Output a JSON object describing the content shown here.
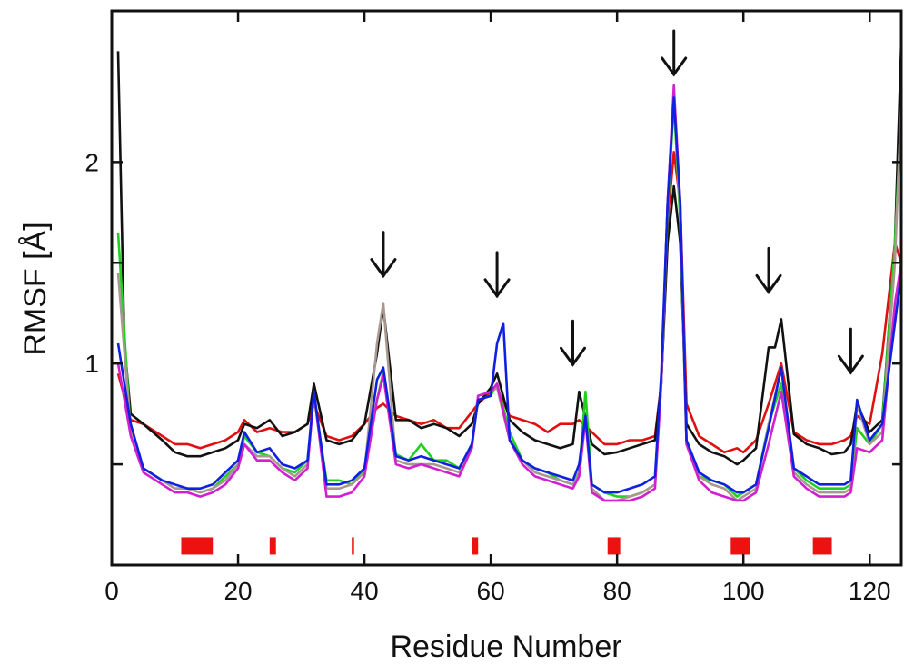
{
  "chart_data": {
    "type": "line",
    "title": "",
    "xlabel": "Residue Number",
    "ylabel": "RMSF [Å]",
    "xlim": [
      0,
      125
    ],
    "ylim": [
      0.0,
      2.75
    ],
    "x_ticks": [
      0,
      20,
      40,
      60,
      80,
      100,
      120
    ],
    "y_ticks_labeled": [
      1,
      2
    ],
    "y_ticks_minor": [
      0.5,
      1.5
    ],
    "grid": false,
    "legend": "none",
    "series": [
      {
        "color": "#e01010",
        "x": [
          1,
          3,
          5,
          8,
          10,
          12,
          14,
          16,
          18,
          20,
          21,
          23,
          25,
          27,
          29,
          31,
          32,
          34,
          36,
          38,
          40,
          42,
          43,
          45,
          47,
          49,
          51,
          53,
          55,
          57,
          58,
          60,
          61,
          63,
          65,
          67,
          69,
          71,
          73,
          74,
          76,
          78,
          80,
          82,
          84,
          86,
          87,
          88,
          89,
          90,
          91,
          93,
          95,
          97,
          99,
          100,
          102,
          104,
          106,
          108,
          110,
          112,
          114,
          116,
          117,
          118,
          120,
          122,
          124,
          125
        ],
        "y": [
          0.95,
          0.72,
          0.7,
          0.64,
          0.6,
          0.6,
          0.58,
          0.6,
          0.62,
          0.66,
          0.72,
          0.66,
          0.68,
          0.66,
          0.66,
          0.7,
          0.8,
          0.64,
          0.62,
          0.64,
          0.7,
          0.78,
          0.8,
          0.74,
          0.72,
          0.7,
          0.72,
          0.68,
          0.68,
          0.76,
          0.8,
          0.86,
          0.88,
          0.74,
          0.72,
          0.7,
          0.66,
          0.7,
          0.7,
          0.72,
          0.66,
          0.6,
          0.6,
          0.62,
          0.62,
          0.64,
          0.9,
          1.7,
          2.05,
          1.8,
          0.8,
          0.64,
          0.6,
          0.56,
          0.58,
          0.56,
          0.62,
          0.8,
          1.0,
          0.66,
          0.62,
          0.6,
          0.6,
          0.62,
          0.64,
          0.74,
          0.7,
          1.05,
          1.6,
          1.5
        ]
      },
      {
        "color": "#111111",
        "x": [
          1,
          2,
          3,
          5,
          8,
          10,
          12,
          14,
          16,
          18,
          20,
          21,
          23,
          25,
          27,
          29,
          31,
          32,
          34,
          36,
          38,
          40,
          42,
          43,
          45,
          47,
          49,
          51,
          53,
          55,
          57,
          58,
          60,
          61,
          63,
          65,
          67,
          69,
          71,
          73,
          74,
          76,
          78,
          80,
          82,
          84,
          86,
          87,
          88,
          89,
          90,
          91,
          93,
          95,
          97,
          99,
          100,
          102,
          104,
          105,
          106,
          108,
          110,
          112,
          114,
          116,
          117,
          118,
          120,
          122,
          124,
          125
        ],
        "y": [
          2.55,
          1.1,
          0.75,
          0.7,
          0.62,
          0.56,
          0.54,
          0.54,
          0.56,
          0.58,
          0.62,
          0.7,
          0.68,
          0.72,
          0.64,
          0.66,
          0.7,
          0.9,
          0.62,
          0.6,
          0.62,
          0.7,
          1.05,
          1.28,
          0.72,
          0.72,
          0.68,
          0.7,
          0.68,
          0.64,
          0.7,
          0.8,
          0.88,
          0.95,
          0.72,
          0.66,
          0.62,
          0.6,
          0.58,
          0.6,
          0.86,
          0.6,
          0.55,
          0.56,
          0.58,
          0.6,
          0.62,
          0.9,
          1.6,
          1.88,
          1.6,
          0.7,
          0.6,
          0.56,
          0.54,
          0.5,
          0.52,
          0.58,
          1.08,
          1.08,
          1.22,
          0.65,
          0.6,
          0.58,
          0.55,
          0.56,
          0.6,
          0.8,
          0.66,
          0.72,
          1.6,
          2.6
        ]
      },
      {
        "color": "#20d020",
        "x": [
          1,
          3,
          5,
          8,
          10,
          12,
          14,
          16,
          18,
          20,
          21,
          23,
          25,
          27,
          29,
          31,
          32,
          34,
          36,
          38,
          40,
          42,
          43,
          45,
          47,
          49,
          51,
          53,
          55,
          57,
          58,
          60,
          61,
          63,
          65,
          67,
          69,
          71,
          73,
          74,
          75,
          76,
          78,
          80,
          82,
          84,
          86,
          87,
          88,
          89,
          90,
          91,
          93,
          95,
          97,
          99,
          100,
          102,
          104,
          106,
          108,
          110,
          112,
          114,
          116,
          117,
          118,
          120,
          122,
          124,
          125
        ],
        "y": [
          1.65,
          0.65,
          0.48,
          0.42,
          0.38,
          0.38,
          0.36,
          0.38,
          0.44,
          0.5,
          0.64,
          0.56,
          0.54,
          0.48,
          0.46,
          0.52,
          0.84,
          0.42,
          0.42,
          0.4,
          0.48,
          0.82,
          0.96,
          0.55,
          0.52,
          0.6,
          0.52,
          0.52,
          0.48,
          0.6,
          0.82,
          0.84,
          0.9,
          0.66,
          0.52,
          0.48,
          0.46,
          0.42,
          0.4,
          0.46,
          0.86,
          0.4,
          0.36,
          0.34,
          0.34,
          0.36,
          0.4,
          0.9,
          1.75,
          2.3,
          1.7,
          0.6,
          0.44,
          0.42,
          0.4,
          0.34,
          0.36,
          0.4,
          0.7,
          0.9,
          0.48,
          0.42,
          0.38,
          0.38,
          0.38,
          0.4,
          0.68,
          0.6,
          0.7,
          1.6,
          2.25
        ]
      },
      {
        "color": "#a89890",
        "x": [
          1,
          3,
          5,
          8,
          10,
          12,
          14,
          16,
          18,
          20,
          21,
          23,
          25,
          27,
          29,
          31,
          32,
          34,
          36,
          38,
          40,
          42,
          43,
          45,
          47,
          49,
          51,
          53,
          55,
          57,
          58,
          60,
          61,
          63,
          65,
          67,
          69,
          71,
          73,
          74,
          75,
          76,
          78,
          80,
          82,
          84,
          86,
          87,
          88,
          89,
          90,
          91,
          93,
          95,
          97,
          99,
          100,
          102,
          104,
          106,
          108,
          110,
          112,
          114,
          116,
          117,
          118,
          120,
          122,
          124,
          125
        ],
        "y": [
          1.45,
          0.66,
          0.48,
          0.42,
          0.38,
          0.38,
          0.36,
          0.38,
          0.42,
          0.5,
          0.6,
          0.54,
          0.54,
          0.48,
          0.44,
          0.5,
          0.84,
          0.38,
          0.38,
          0.4,
          0.46,
          1.1,
          1.3,
          0.52,
          0.5,
          0.5,
          0.5,
          0.48,
          0.46,
          0.58,
          0.84,
          0.86,
          0.88,
          0.62,
          0.52,
          0.46,
          0.44,
          0.42,
          0.4,
          0.45,
          0.74,
          0.38,
          0.32,
          0.32,
          0.34,
          0.36,
          0.4,
          0.9,
          1.8,
          2.35,
          1.75,
          0.6,
          0.44,
          0.4,
          0.38,
          0.32,
          0.34,
          0.38,
          0.7,
          0.98,
          0.46,
          0.4,
          0.36,
          0.36,
          0.36,
          0.38,
          0.8,
          0.6,
          0.66,
          1.5,
          2.3
        ]
      },
      {
        "color": "#d020d0",
        "x": [
          1,
          3,
          5,
          8,
          10,
          12,
          14,
          16,
          18,
          20,
          21,
          23,
          25,
          27,
          29,
          31,
          32,
          34,
          36,
          38,
          40,
          42,
          43,
          45,
          47,
          49,
          51,
          53,
          55,
          57,
          58,
          60,
          61,
          63,
          65,
          67,
          69,
          71,
          73,
          74,
          75,
          76,
          78,
          80,
          82,
          84,
          86,
          87,
          88,
          89,
          90,
          91,
          93,
          95,
          97,
          99,
          100,
          102,
          104,
          106,
          108,
          110,
          112,
          114,
          116,
          117,
          118,
          120,
          122,
          124,
          125
        ],
        "y": [
          1.0,
          0.64,
          0.46,
          0.4,
          0.36,
          0.36,
          0.34,
          0.36,
          0.4,
          0.48,
          0.6,
          0.52,
          0.52,
          0.46,
          0.42,
          0.48,
          0.86,
          0.34,
          0.34,
          0.36,
          0.44,
          0.82,
          0.94,
          0.5,
          0.48,
          0.5,
          0.48,
          0.46,
          0.44,
          0.58,
          0.84,
          0.86,
          0.9,
          0.62,
          0.5,
          0.44,
          0.42,
          0.4,
          0.38,
          0.44,
          0.72,
          0.36,
          0.32,
          0.32,
          0.32,
          0.34,
          0.38,
          0.9,
          1.8,
          2.38,
          1.8,
          0.6,
          0.42,
          0.36,
          0.34,
          0.32,
          0.32,
          0.36,
          0.6,
          0.86,
          0.44,
          0.38,
          0.34,
          0.34,
          0.34,
          0.36,
          0.58,
          0.56,
          0.62,
          1.3,
          1.5
        ]
      },
      {
        "color": "#1020e0",
        "x": [
          1,
          3,
          5,
          8,
          10,
          12,
          14,
          16,
          18,
          20,
          21,
          23,
          25,
          27,
          29,
          31,
          32,
          34,
          36,
          38,
          40,
          42,
          43,
          45,
          47,
          49,
          51,
          53,
          55,
          57,
          58,
          60,
          61,
          62,
          63,
          65,
          67,
          69,
          71,
          73,
          74,
          75,
          76,
          78,
          80,
          82,
          84,
          86,
          87,
          88,
          89,
          90,
          91,
          93,
          95,
          97,
          99,
          100,
          102,
          104,
          106,
          108,
          110,
          112,
          114,
          116,
          117,
          118,
          120,
          122,
          124,
          125
        ],
        "y": [
          1.1,
          0.7,
          0.48,
          0.42,
          0.4,
          0.38,
          0.38,
          0.4,
          0.46,
          0.52,
          0.66,
          0.56,
          0.58,
          0.5,
          0.48,
          0.52,
          0.86,
          0.4,
          0.4,
          0.42,
          0.48,
          0.92,
          0.98,
          0.54,
          0.52,
          0.54,
          0.52,
          0.5,
          0.48,
          0.6,
          0.82,
          0.84,
          1.1,
          1.2,
          0.62,
          0.52,
          0.48,
          0.46,
          0.44,
          0.42,
          0.5,
          0.74,
          0.4,
          0.36,
          0.36,
          0.38,
          0.4,
          0.44,
          0.95,
          1.8,
          2.32,
          1.8,
          0.62,
          0.46,
          0.42,
          0.4,
          0.36,
          0.36,
          0.4,
          0.68,
          0.98,
          0.48,
          0.44,
          0.4,
          0.4,
          0.4,
          0.42,
          0.82,
          0.62,
          0.7,
          1.2,
          1.45
        ]
      }
    ],
    "annotations": {
      "arrow_residues": [
        43,
        61,
        73,
        89,
        104,
        117
      ],
      "arrow_color": "#111111",
      "secondary_structure_bars": [
        [
          11,
          16
        ],
        [
          25,
          26
        ],
        [
          38,
          38.3
        ],
        [
          57,
          58
        ],
        [
          78.5,
          80.5
        ],
        [
          98,
          101
        ],
        [
          111,
          114
        ]
      ],
      "bar_color": "#ee1111"
    }
  }
}
